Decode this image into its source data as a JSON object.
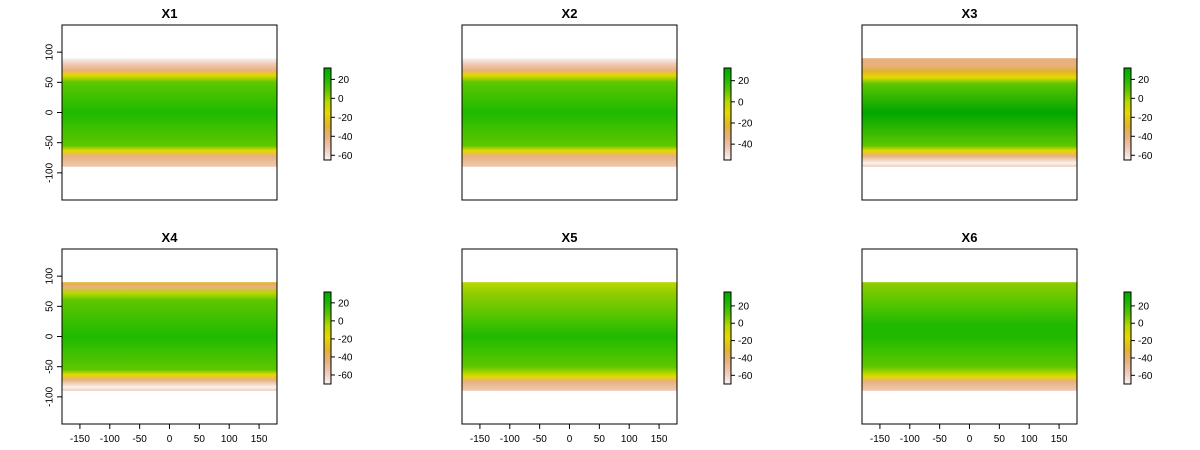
{
  "chart_data": [
    {
      "type": "heatmap",
      "title": "X1",
      "x": {
        "ticks": [],
        "range": [
          -180,
          180
        ]
      },
      "y": {
        "ticks": [
          100,
          50,
          0,
          -50,
          -100
        ],
        "range": [
          -145,
          145
        ]
      },
      "data_extent": {
        "lon": [
          -180,
          180
        ],
        "lat": [
          -90,
          90
        ]
      },
      "legend": {
        "ticks": [
          20,
          0,
          -20,
          -40,
          -60
        ],
        "range": [
          -65,
          32
        ]
      }
    },
    {
      "type": "heatmap",
      "title": "X2",
      "x": {
        "ticks": [],
        "range": [
          -180,
          180
        ]
      },
      "y": {
        "ticks": [],
        "range": [
          -145,
          145
        ]
      },
      "data_extent": {
        "lon": [
          -180,
          180
        ],
        "lat": [
          -90,
          90
        ]
      },
      "legend": {
        "ticks": [
          20,
          0,
          -20,
          -40
        ],
        "range": [
          -55,
          32
        ]
      }
    },
    {
      "type": "heatmap",
      "title": "X3",
      "x": {
        "ticks": [],
        "range": [
          -180,
          180
        ]
      },
      "y": {
        "ticks": [],
        "range": [
          -145,
          145
        ]
      },
      "data_extent": {
        "lon": [
          -180,
          180
        ],
        "lat": [
          -90,
          90
        ]
      },
      "legend": {
        "ticks": [
          20,
          0,
          -20,
          -40,
          -60
        ],
        "range": [
          -65,
          32
        ]
      }
    },
    {
      "type": "heatmap",
      "title": "X4",
      "x": {
        "ticks": [
          -150,
          -100,
          -50,
          0,
          50,
          100,
          150
        ],
        "range": [
          -180,
          180
        ]
      },
      "y": {
        "ticks": [
          100,
          50,
          0,
          -50,
          -100
        ],
        "range": [
          -145,
          145
        ]
      },
      "data_extent": {
        "lon": [
          -180,
          180
        ],
        "lat": [
          -90,
          90
        ]
      },
      "legend": {
        "ticks": [
          20,
          0,
          -20,
          -40,
          -60
        ],
        "range": [
          -70,
          32
        ]
      }
    },
    {
      "type": "heatmap",
      "title": "X5",
      "x": {
        "ticks": [
          -150,
          -100,
          -50,
          0,
          50,
          100,
          150
        ],
        "range": [
          -180,
          180
        ]
      },
      "y": {
        "ticks": [],
        "range": [
          -145,
          145
        ]
      },
      "data_extent": {
        "lon": [
          -180,
          180
        ],
        "lat": [
          -90,
          90
        ]
      },
      "legend": {
        "ticks": [
          20,
          0,
          -20,
          -40,
          -60
        ],
        "range": [
          -70,
          36
        ]
      }
    },
    {
      "type": "heatmap",
      "title": "X6",
      "x": {
        "ticks": [
          -150,
          -100,
          -50,
          0,
          50,
          100,
          150
        ],
        "range": [
          -180,
          180
        ]
      },
      "y": {
        "ticks": [],
        "range": [
          -145,
          145
        ]
      },
      "data_extent": {
        "lon": [
          -180,
          180
        ],
        "lat": [
          -90,
          90
        ]
      },
      "legend": {
        "ticks": [
          20,
          0,
          -20,
          -40,
          -60
        ],
        "range": [
          -70,
          36
        ]
      }
    }
  ],
  "colors": {
    "palette": [
      "#f6f3f1",
      "#efc9b4",
      "#e8b07f",
      "#e0b32b",
      "#e6d800",
      "#b9d800",
      "#5ec700",
      "#1fba00",
      "#00a600"
    ],
    "frame": "#000000",
    "background": "#ffffff"
  }
}
